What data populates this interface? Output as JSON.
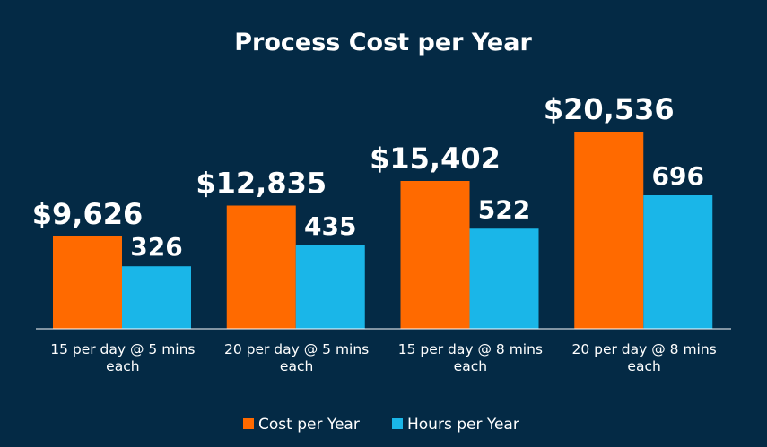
{
  "colors": {
    "background": "#042a45",
    "cost": "#ff6a00",
    "hours": "#1ab6e8",
    "text": "#ffffff",
    "axis": "#ffffff"
  },
  "chart_data": {
    "type": "bar",
    "title": "Process Cost per Year",
    "xlabel": "",
    "ylabel": "",
    "categories": [
      [
        "15 per day @ 5 mins",
        "each"
      ],
      [
        "20 per day @ 5 mins",
        "each"
      ],
      [
        "15 per day @ 8 mins",
        "each"
      ],
      [
        "20 per day @ 8 mins",
        "each"
      ]
    ],
    "series": [
      {
        "name": "Cost per Year",
        "values": [
          9626,
          12835,
          15402,
          20536
        ],
        "labels": [
          "$9,626",
          "$12,835",
          "$15,402",
          "$20,536"
        ],
        "color": "#ff6a00"
      },
      {
        "name": "Hours per Year",
        "values": [
          326,
          435,
          522,
          696
        ],
        "labels": [
          "326",
          "435",
          "522",
          "696"
        ],
        "color": "#1ab6e8"
      }
    ],
    "grid": false,
    "legend_position": "bottom-center"
  }
}
